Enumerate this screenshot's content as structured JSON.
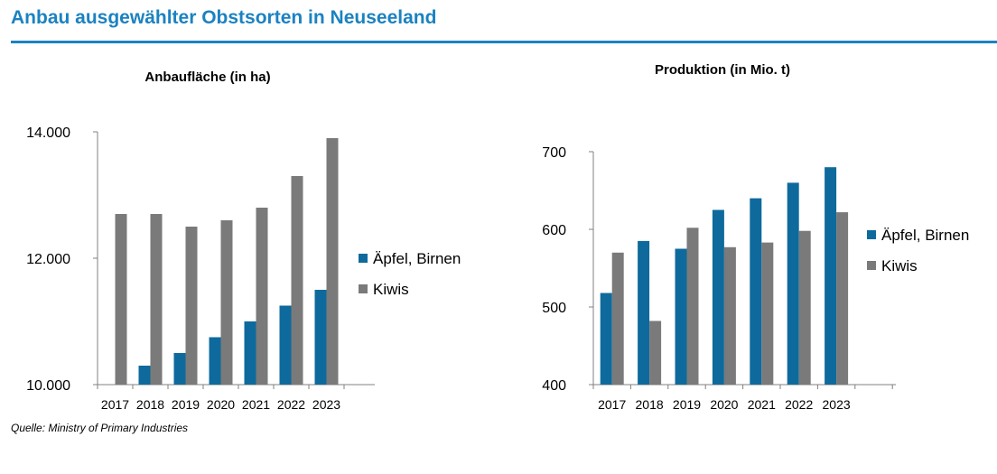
{
  "page": {
    "title": "Anbau ausgewählter Obstsorten in Neuseeland",
    "source": "Quelle: Ministry of Primary Industries"
  },
  "colors": {
    "accent": "#1b82c1",
    "apples": "#0e6a9c",
    "kiwis": "#7a7a7a",
    "axis": "#808080"
  },
  "chart_data": [
    {
      "type": "bar",
      "title": "Anbaufläche (in ha)",
      "xlabel": "",
      "ylabel": "",
      "categories": [
        "2017",
        "2018",
        "2019",
        "2020",
        "2021",
        "2022",
        "2023"
      ],
      "series": [
        {
          "name": "Äpfel, Birnen",
          "values": [
            10000,
            10300,
            10500,
            10750,
            11000,
            11250,
            11500
          ]
        },
        {
          "name": "Kiwis",
          "values": [
            12700,
            12700,
            12500,
            12600,
            12800,
            13300,
            13900
          ]
        }
      ],
      "ylim": [
        10000,
        14000
      ],
      "yticks": [
        10000,
        12000,
        14000
      ],
      "ytick_labels": [
        "10.000",
        "12.000",
        "14.000"
      ],
      "grid": false,
      "legend": "right"
    },
    {
      "type": "bar",
      "title": "Produktion (in Mio. t)",
      "xlabel": "",
      "ylabel": "",
      "categories": [
        "2017",
        "2018",
        "2019",
        "2020",
        "2021",
        "2022",
        "2023"
      ],
      "series": [
        {
          "name": "Äpfel, Birnen",
          "values": [
            518,
            585,
            575,
            625,
            640,
            660,
            680
          ]
        },
        {
          "name": "Kiwis",
          "values": [
            570,
            482,
            602,
            577,
            583,
            598,
            622
          ]
        }
      ],
      "ylim": [
        400,
        700
      ],
      "yticks": [
        400,
        500,
        600,
        700
      ],
      "ytick_labels": [
        "400",
        "500",
        "600",
        "700"
      ],
      "grid": false,
      "legend": "right"
    }
  ]
}
